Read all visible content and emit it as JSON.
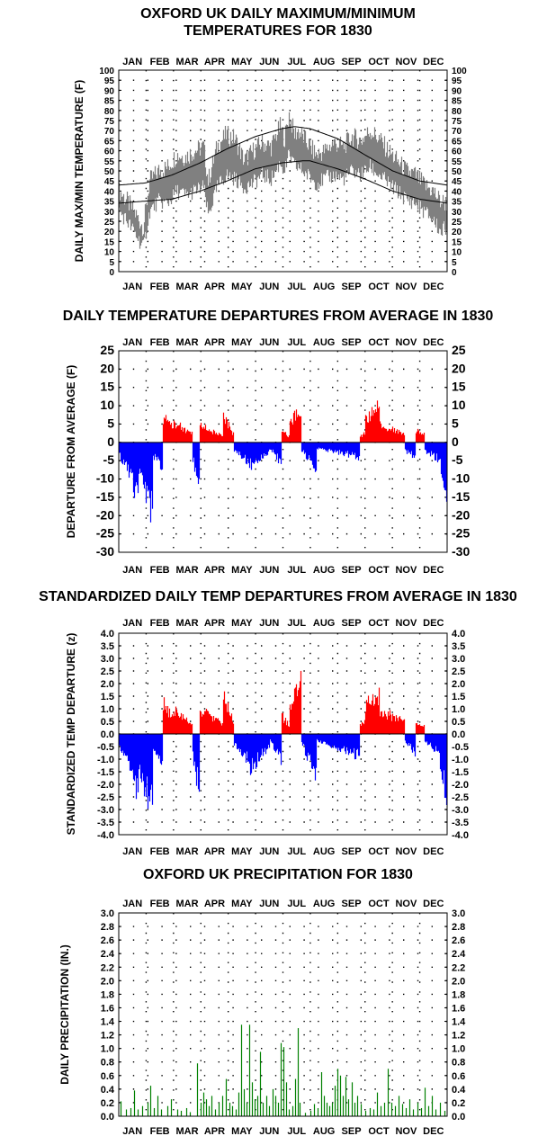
{
  "chart_data": [
    {
      "type": "line",
      "title_line1": "OXFORD UK DAILY MAXIMUM/MINIMUM",
      "title_line2": "TEMPERATURES FOR 1830",
      "ylabel": "DAILY MAX/MIN TEMPERATURE (F)",
      "months": [
        "JAN",
        "FEB",
        "MAR",
        "APR",
        "MAY",
        "JUN",
        "JUL",
        "AUG",
        "SEP",
        "OCT",
        "NOV",
        "DEC"
      ],
      "ylim": [
        0,
        100
      ],
      "yticks": [
        0,
        5,
        10,
        15,
        20,
        25,
        30,
        35,
        40,
        45,
        50,
        55,
        60,
        65,
        70,
        75,
        80,
        85,
        90,
        95,
        100
      ],
      "colors": {
        "observed": "#808080",
        "normal": "#000000"
      },
      "normal_max": {
        "day": [
          1,
          30,
          60,
          91,
          121,
          152,
          182,
          196,
          213,
          244,
          274,
          305,
          335,
          365
        ],
        "value": [
          43,
          44,
          48,
          54,
          61,
          67,
          71,
          72,
          71,
          66,
          58,
          50,
          45,
          43
        ]
      },
      "normal_min": {
        "day": [
          1,
          30,
          60,
          91,
          121,
          152,
          182,
          205,
          213,
          244,
          274,
          305,
          335,
          365
        ],
        "value": [
          34,
          35,
          36,
          40,
          45,
          51,
          54,
          55,
          55,
          51,
          46,
          40,
          36,
          34
        ]
      },
      "observed_max": {
        "day": [
          1,
          10,
          20,
          28,
          35,
          45,
          55,
          65,
          75,
          85,
          95,
          100,
          110,
          120,
          130,
          140,
          150,
          160,
          170,
          180,
          185,
          190,
          196,
          200,
          210,
          220,
          230,
          240,
          250,
          260,
          270,
          280,
          290,
          300,
          310,
          320,
          330,
          340,
          350,
          358,
          365
        ],
        "value": [
          40,
          35,
          28,
          22,
          45,
          50,
          52,
          58,
          57,
          60,
          62,
          45,
          62,
          68,
          66,
          55,
          60,
          64,
          62,
          72,
          66,
          78,
          68,
          70,
          64,
          58,
          60,
          64,
          62,
          67,
          65,
          70,
          66,
          60,
          55,
          50,
          48,
          43,
          40,
          35,
          34
        ]
      },
      "observed_min": {
        "day": [
          1,
          10,
          20,
          28,
          35,
          45,
          55,
          65,
          75,
          85,
          95,
          100,
          110,
          120,
          130,
          140,
          150,
          160,
          170,
          180,
          185,
          190,
          196,
          200,
          210,
          220,
          230,
          240,
          250,
          260,
          270,
          280,
          290,
          300,
          310,
          320,
          330,
          340,
          350,
          358,
          365
        ],
        "value": [
          30,
          25,
          18,
          12,
          30,
          35,
          34,
          40,
          38,
          40,
          42,
          28,
          42,
          48,
          46,
          42,
          44,
          48,
          46,
          54,
          50,
          58,
          52,
          52,
          48,
          44,
          46,
          48,
          46,
          50,
          48,
          52,
          48,
          44,
          40,
          36,
          34,
          30,
          26,
          20,
          22
        ]
      }
    },
    {
      "type": "bar",
      "title": "DAILY TEMPERATURE DEPARTURES FROM AVERAGE IN 1830",
      "ylabel": "DEPARTURE FROM AVERAGE (F)",
      "months": [
        "JAN",
        "FEB",
        "MAR",
        "APR",
        "MAY",
        "JUN",
        "JUL",
        "AUG",
        "SEP",
        "OCT",
        "NOV",
        "DEC"
      ],
      "ylim": [
        -30,
        25
      ],
      "yticks": [
        -30,
        -25,
        -20,
        -15,
        -10,
        -5,
        0,
        5,
        10,
        15,
        20,
        25
      ],
      "colors": {
        "positive": "#ff0000",
        "negative": "#0000ff"
      },
      "segments": [
        {
          "start": 1,
          "end": 12,
          "from": -4,
          "to": -10
        },
        {
          "start": 13,
          "end": 22,
          "from": -10,
          "to": -21
        },
        {
          "start": 23,
          "end": 38,
          "from": -12,
          "to": -24
        },
        {
          "start": 39,
          "end": 49,
          "from": -5,
          "to": -9
        },
        {
          "start": 50,
          "end": 60,
          "from": 9,
          "to": 5
        },
        {
          "start": 61,
          "end": 82,
          "from": 7,
          "to": 3
        },
        {
          "start": 83,
          "end": 90,
          "from": -6,
          "to": -15
        },
        {
          "start": 91,
          "end": 116,
          "from": 6,
          "to": 2
        },
        {
          "start": 117,
          "end": 128,
          "from": 9,
          "to": 3
        },
        {
          "start": 129,
          "end": 145,
          "from": -3,
          "to": -7
        },
        {
          "start": 146,
          "end": 168,
          "from": -8,
          "to": -3
        },
        {
          "start": 169,
          "end": 181,
          "from": -2,
          "to": -7
        },
        {
          "start": 182,
          "end": 190,
          "from": 4,
          "to": 2
        },
        {
          "start": 191,
          "end": 203,
          "from": 7,
          "to": 11
        },
        {
          "start": 204,
          "end": 220,
          "from": -3,
          "to": -9
        },
        {
          "start": 221,
          "end": 268,
          "from": -2,
          "to": -5
        },
        {
          "start": 269,
          "end": 274,
          "from": 2,
          "to": 3
        },
        {
          "start": 275,
          "end": 290,
          "from": 8,
          "to": 12
        },
        {
          "start": 291,
          "end": 318,
          "from": 6,
          "to": 3
        },
        {
          "start": 319,
          "end": 330,
          "from": -3,
          "to": -5
        },
        {
          "start": 331,
          "end": 340,
          "from": 4,
          "to": 3
        },
        {
          "start": 341,
          "end": 357,
          "from": -3,
          "to": -6
        },
        {
          "start": 358,
          "end": 365,
          "from": -8,
          "to": -22
        }
      ]
    },
    {
      "type": "bar",
      "title": "STANDARDIZED DAILY TEMP DEPARTURES FROM AVERAGE IN 1830",
      "ylabel": "STANDARDIZED TEMP DEPARTURE (z)",
      "months": [
        "JAN",
        "FEB",
        "MAR",
        "APR",
        "MAY",
        "JUN",
        "JUL",
        "AUG",
        "SEP",
        "OCT",
        "NOV",
        "DEC"
      ],
      "ylim": [
        -4,
        4
      ],
      "yticks": [
        "-4.0",
        "-3.5",
        "-3.0",
        "-2.5",
        "-2.0",
        "-1.5",
        "-1.0",
        "-0.5",
        "0.0",
        "0.5",
        "1.0",
        "1.5",
        "2.0",
        "2.5",
        "3.0",
        "3.5",
        "4.0"
      ],
      "colors": {
        "positive": "#ff0000",
        "negative": "#0000ff"
      },
      "segments": [
        {
          "start": 1,
          "end": 12,
          "from": -0.6,
          "to": -1.4
        },
        {
          "start": 13,
          "end": 22,
          "from": -1.5,
          "to": -3.2
        },
        {
          "start": 23,
          "end": 38,
          "from": -1.8,
          "to": -3.7
        },
        {
          "start": 39,
          "end": 49,
          "from": -0.6,
          "to": -1.4
        },
        {
          "start": 50,
          "end": 60,
          "from": 1.6,
          "to": 0.9
        },
        {
          "start": 61,
          "end": 82,
          "from": 1.2,
          "to": 0.5
        },
        {
          "start": 83,
          "end": 90,
          "from": -1.0,
          "to": -2.9
        },
        {
          "start": 91,
          "end": 116,
          "from": 1.2,
          "to": 0.5
        },
        {
          "start": 117,
          "end": 128,
          "from": 1.9,
          "to": 0.6
        },
        {
          "start": 129,
          "end": 145,
          "from": -0.5,
          "to": -1.3
        },
        {
          "start": 146,
          "end": 168,
          "from": -1.8,
          "to": -0.6
        },
        {
          "start": 169,
          "end": 181,
          "from": -0.3,
          "to": -1.4
        },
        {
          "start": 182,
          "end": 190,
          "from": 0.9,
          "to": 0.4
        },
        {
          "start": 191,
          "end": 203,
          "from": 1.5,
          "to": 2.6
        },
        {
          "start": 204,
          "end": 220,
          "from": -0.5,
          "to": -2.0
        },
        {
          "start": 221,
          "end": 268,
          "from": -0.3,
          "to": -1.1
        },
        {
          "start": 269,
          "end": 274,
          "from": 0.4,
          "to": 0.7
        },
        {
          "start": 275,
          "end": 290,
          "from": 1.5,
          "to": 2.1
        },
        {
          "start": 291,
          "end": 318,
          "from": 1.2,
          "to": 0.6
        },
        {
          "start": 319,
          "end": 330,
          "from": -0.4,
          "to": -0.9
        },
        {
          "start": 331,
          "end": 340,
          "from": 0.6,
          "to": 0.4
        },
        {
          "start": 341,
          "end": 357,
          "from": -0.4,
          "to": -0.9
        },
        {
          "start": 358,
          "end": 365,
          "from": -1.4,
          "to": -3.1
        }
      ]
    },
    {
      "type": "bar",
      "title": "OXFORD UK PRECIPITATION FOR 1830",
      "ylabel": "DAILY PRECIPITATION (IN.)",
      "months": [
        "JAN",
        "FEB",
        "MAR",
        "APR",
        "MAY",
        "JUN",
        "JUL",
        "AUG",
        "SEP",
        "OCT",
        "NOV",
        "DEC"
      ],
      "ylim": [
        0,
        3
      ],
      "yticks": [
        "0.0",
        "0.2",
        "0.4",
        "0.6",
        "0.8",
        "1.0",
        "1.2",
        "1.4",
        "1.6",
        "1.8",
        "2.0",
        "2.2",
        "2.4",
        "2.6",
        "2.8",
        "3.0"
      ],
      "colors": {
        "bars": "#008000"
      },
      "precip": [
        [
          3,
          0.22
        ],
        [
          9,
          0.1
        ],
        [
          14,
          0.12
        ],
        [
          18,
          0.38
        ],
        [
          22,
          0.1
        ],
        [
          27,
          0.15
        ],
        [
          33,
          0.2
        ],
        [
          36,
          0.45
        ],
        [
          40,
          0.12
        ],
        [
          44,
          0.3
        ],
        [
          48,
          0.1
        ],
        [
          55,
          0.15
        ],
        [
          59,
          0.25
        ],
        [
          66,
          0.1
        ],
        [
          70,
          0.08
        ],
        [
          76,
          0.12
        ],
        [
          80,
          0.06
        ],
        [
          88,
          0.78
        ],
        [
          92,
          0.2
        ],
        [
          95,
          0.35
        ],
        [
          98,
          0.25
        ],
        [
          101,
          0.15
        ],
        [
          104,
          0.3
        ],
        [
          108,
          0.1
        ],
        [
          112,
          0.2
        ],
        [
          116,
          0.3
        ],
        [
          120,
          0.55
        ],
        [
          124,
          0.2
        ],
        [
          127,
          0.15
        ],
        [
          131,
          0.1
        ],
        [
          134,
          0.35
        ],
        [
          137,
          1.35
        ],
        [
          140,
          0.4
        ],
        [
          143,
          0.2
        ],
        [
          146,
          1.35
        ],
        [
          149,
          0.5
        ],
        [
          152,
          0.25
        ],
        [
          155,
          0.3
        ],
        [
          158,
          0.95
        ],
        [
          161,
          0.2
        ],
        [
          165,
          0.3
        ],
        [
          168,
          0.15
        ],
        [
          172,
          0.4
        ],
        [
          175,
          0.3
        ],
        [
          178,
          0.2
        ],
        [
          181,
          1.08
        ],
        [
          184,
          1.02
        ],
        [
          187,
          0.5
        ],
        [
          190,
          0.1
        ],
        [
          194,
          0.15
        ],
        [
          197,
          0.55
        ],
        [
          200,
          1.3
        ],
        [
          202,
          0.2
        ],
        [
          208,
          0.05
        ],
        [
          214,
          0.08
        ],
        [
          218,
          0.18
        ],
        [
          222,
          0.12
        ],
        [
          226,
          0.65
        ],
        [
          229,
          0.3
        ],
        [
          232,
          0.2
        ],
        [
          235,
          0.15
        ],
        [
          238,
          0.2
        ],
        [
          241,
          0.45
        ],
        [
          244,
          0.7
        ],
        [
          247,
          0.6
        ],
        [
          250,
          0.3
        ],
        [
          253,
          0.58
        ],
        [
          256,
          0.25
        ],
        [
          260,
          0.5
        ],
        [
          263,
          0.2
        ],
        [
          266,
          0.3
        ],
        [
          270,
          0.18
        ],
        [
          275,
          0.08
        ],
        [
          280,
          0.12
        ],
        [
          284,
          0.1
        ],
        [
          288,
          0.35
        ],
        [
          292,
          0.15
        ],
        [
          296,
          0.2
        ],
        [
          300,
          0.7
        ],
        [
          304,
          0.2
        ],
        [
          308,
          0.15
        ],
        [
          312,
          0.3
        ],
        [
          316,
          0.18
        ],
        [
          320,
          0.12
        ],
        [
          324,
          0.25
        ],
        [
          328,
          0.1
        ],
        [
          333,
          0.2
        ],
        [
          337,
          0.12
        ],
        [
          341,
          0.42
        ],
        [
          345,
          0.15
        ],
        [
          349,
          0.3
        ],
        [
          353,
          0.1
        ],
        [
          358,
          0.2
        ],
        [
          363,
          0.08
        ]
      ]
    }
  ]
}
